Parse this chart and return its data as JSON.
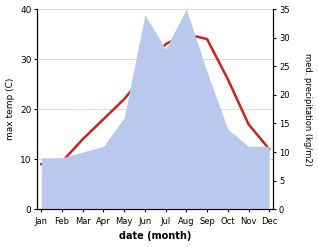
{
  "months": [
    "Jan",
    "Feb",
    "Mar",
    "Apr",
    "May",
    "Jun",
    "Jul",
    "Aug",
    "Sep",
    "Oct",
    "Nov",
    "Dec"
  ],
  "temp": [
    9,
    9.5,
    14,
    18,
    22,
    27,
    33,
    35,
    34,
    26,
    17,
    12
  ],
  "precip": [
    9,
    9,
    10,
    11,
    16,
    34,
    28,
    35,
    24,
    14,
    11,
    11
  ],
  "temp_color": "#cc2222",
  "precip_color": "#b8c8ee",
  "background_color": "#ffffff",
  "xlabel": "date (month)",
  "ylabel_left": "max temp (C)",
  "ylabel_right": "med. precipitation (kg/m2)",
  "ylim_left": [
    0,
    40
  ],
  "ylim_right": [
    0,
    35
  ],
  "yticks_left": [
    0,
    10,
    20,
    30,
    40
  ],
  "yticks_right": [
    0,
    5,
    10,
    15,
    20,
    25,
    30,
    35
  ]
}
